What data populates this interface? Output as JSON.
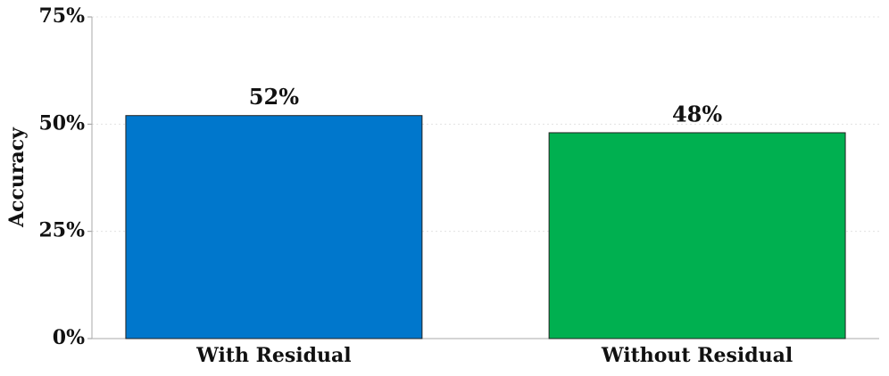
{
  "chart_data": {
    "type": "bar",
    "ylabel": "Accuracy",
    "categories": [
      "With Residual",
      "Without Residual"
    ],
    "values": [
      52,
      48
    ],
    "value_labels": [
      "52%",
      "48%"
    ],
    "colors": [
      "#0077cc",
      "#00b050"
    ],
    "ylim": [
      0,
      75
    ],
    "yticks": [
      {
        "value": 0,
        "label": "0%"
      },
      {
        "value": 25,
        "label": "25%"
      },
      {
        "value": 50,
        "label": "50%"
      },
      {
        "value": 75,
        "label": "75%"
      }
    ],
    "grid": true
  }
}
